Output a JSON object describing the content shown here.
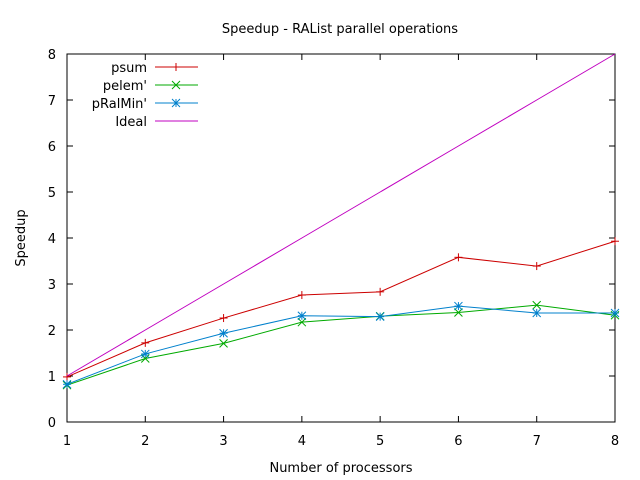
{
  "chart_data": {
    "type": "line",
    "title": "Speedup - RAList parallel operations",
    "xlabel": "Number of processors",
    "ylabel": "Speedup",
    "xlim": [
      1,
      8
    ],
    "ylim": [
      0,
      8
    ],
    "x_ticks": [
      "1",
      "2",
      "3",
      "4",
      "5",
      "6",
      "7",
      "8"
    ],
    "y_ticks": [
      "0",
      "1",
      "2",
      "3",
      "4",
      "5",
      "6",
      "7",
      "8"
    ],
    "x": [
      1,
      2,
      3,
      4,
      5,
      6,
      7,
      8
    ],
    "grid": false,
    "legend_position": "top-left",
    "series": [
      {
        "name": "psum",
        "values": [
          0.98,
          1.72,
          2.26,
          2.76,
          2.83,
          3.58,
          3.39,
          3.93
        ],
        "color": "#cc0000",
        "marker": "plus"
      },
      {
        "name": "pelem'",
        "values": [
          0.8,
          1.38,
          1.71,
          2.17,
          2.3,
          2.38,
          2.54,
          2.32
        ],
        "color": "#00aa00",
        "marker": "cross"
      },
      {
        "name": "pRalMin'",
        "values": [
          0.82,
          1.48,
          1.93,
          2.31,
          2.29,
          2.52,
          2.37,
          2.37
        ],
        "color": "#0080cc",
        "marker": "star"
      },
      {
        "name": "Ideal",
        "values": [
          1,
          2,
          3,
          4,
          5,
          6,
          7,
          8
        ],
        "color": "#c000c0",
        "marker": "none"
      }
    ]
  }
}
